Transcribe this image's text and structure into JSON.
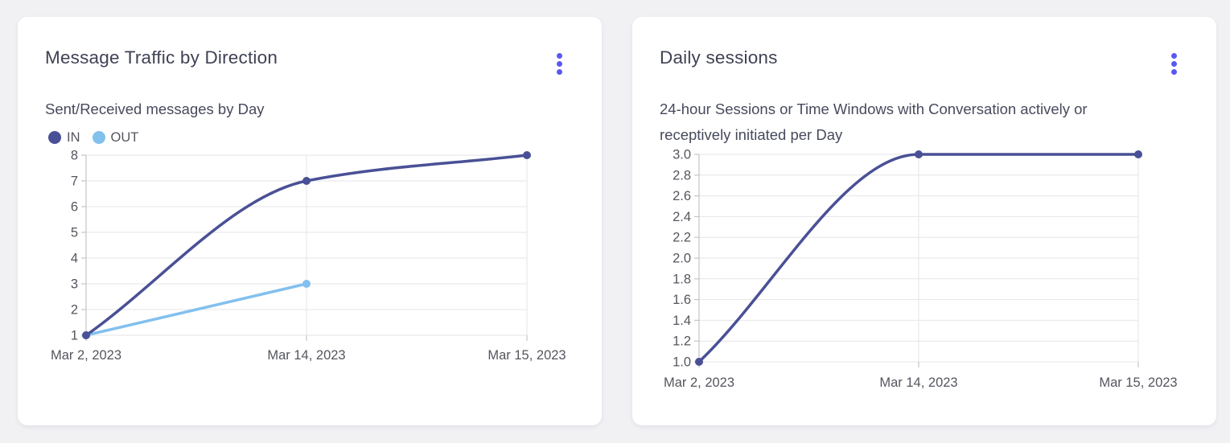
{
  "page": {
    "background": "#f1f1f4"
  },
  "colors": {
    "page_bg": "#f1f1f4",
    "card_bg": "#ffffff",
    "menu_accent": "#5a58f0",
    "title_text": "#3f4254",
    "subtitle_text": "#474a5c",
    "axis_label_text": "#55565e",
    "grid_line": "#e6e6e8",
    "axis_line": "#c4c4c9",
    "series_in": "#4a5096",
    "series_out": "#82c0ee"
  },
  "icons": {
    "card_menu": "kebab-menu-icon"
  },
  "chart_data": [
    {
      "type": "line",
      "title": "Message Traffic by Direction",
      "subtitle": "Sent/Received messages by Day",
      "categories": [
        "Mar 2, 2023",
        "Mar 14, 2023",
        "Mar 15, 2023"
      ],
      "series": [
        {
          "name": "IN",
          "color": "#4a5096",
          "values": [
            1,
            7,
            8
          ]
        },
        {
          "name": "OUT",
          "color": "#82c0ee",
          "values": [
            1,
            3,
            null
          ]
        }
      ],
      "xlabel": "",
      "ylabel": "",
      "ylim": [
        1,
        8
      ],
      "yticks": [
        8,
        7,
        6,
        5,
        4,
        3,
        2,
        1
      ],
      "ytick_labels": [
        "8",
        "7",
        "6",
        "5",
        "4",
        "3",
        "2",
        "1"
      ],
      "grid": true,
      "curve": "monotone",
      "point_markers": true,
      "legend": true,
      "legend_position": "top-left"
    },
    {
      "type": "line",
      "title": "Daily sessions",
      "subtitle": "24-hour Sessions or Time Windows with Conversation actively or receptively initiated per Day",
      "categories": [
        "Mar 2, 2023",
        "Mar 14, 2023",
        "Mar 15, 2023"
      ],
      "series": [
        {
          "name": "",
          "color": "#4a5096",
          "values": [
            1.0,
            3.0,
            3.0
          ]
        }
      ],
      "xlabel": "",
      "ylabel": "",
      "ylim": [
        1.0,
        3.0
      ],
      "yticks": [
        3.0,
        2.8,
        2.6,
        2.4,
        2.2,
        2.0,
        1.8,
        1.6,
        1.4,
        1.2,
        1.0
      ],
      "ytick_labels": [
        "3.0",
        "2.8",
        "2.6",
        "2.4",
        "2.2",
        "2.0",
        "1.8",
        "1.6",
        "1.4",
        "1.2",
        "1.0"
      ],
      "grid": true,
      "curve": "monotone",
      "point_markers": true,
      "legend": false,
      "legend_position": "none"
    }
  ]
}
